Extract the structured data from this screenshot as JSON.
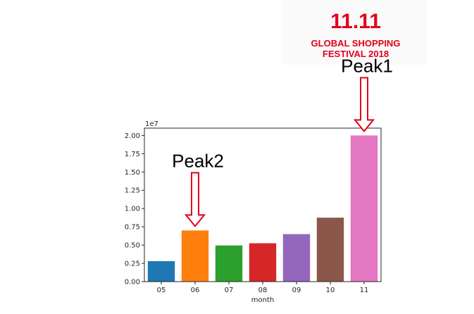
{
  "logo": {
    "mark": "11.11",
    "line1": "GLOBAL SHOPPING",
    "line2": "FESTIVAL 2018",
    "color": "#e0001a"
  },
  "chart_data": {
    "type": "bar",
    "categories": [
      "05",
      "06",
      "07",
      "08",
      "09",
      "10",
      "11"
    ],
    "values": [
      2800000,
      7000000,
      4950000,
      5250000,
      6500000,
      8750000,
      20000000
    ],
    "colors": [
      "#1f77b4",
      "#ff7f0e",
      "#2ca02c",
      "#d62728",
      "#9467bd",
      "#8c564b",
      "#e377c2"
    ],
    "xlabel": "month",
    "ylabel": "",
    "ylim": [
      0,
      21000000
    ],
    "yticks": [
      0,
      2500000,
      5000000,
      7500000,
      10000000,
      12500000,
      15000000,
      17500000,
      20000000
    ],
    "ytick_labels": [
      "0.00",
      "0.25",
      "0.50",
      "0.75",
      "1.00",
      "1.25",
      "1.50",
      "1.75",
      "2.00"
    ],
    "offset_label": "1e7",
    "annotations": [
      {
        "text": "Peak1",
        "category": "11",
        "arrow_color": "#e0001a"
      },
      {
        "text": "Peak2",
        "category": "06",
        "arrow_color": "#e0001a"
      }
    ]
  }
}
